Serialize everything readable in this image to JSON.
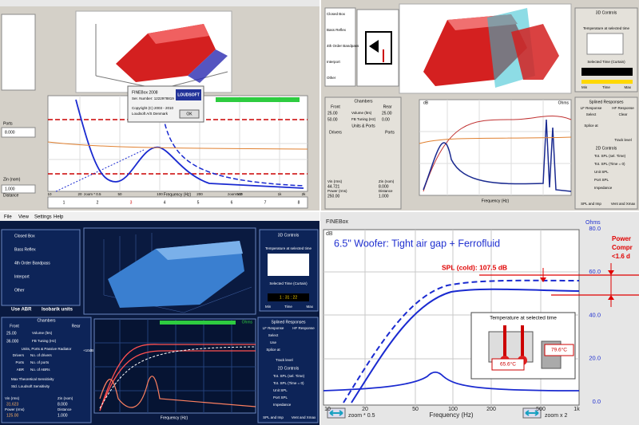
{
  "top_left": {
    "splash": {
      "product": "FINEBox 2008",
      "serial": "Ser. Number: 1222978819",
      "copyright": "Copyright (C) 2003 - 2010",
      "company": "Loudsoft A/S Denmark",
      "logo": "LOUDSOFT",
      "button": "OK"
    },
    "side_labels": [
      "Ports",
      "Zin (nom)",
      "Distance"
    ],
    "side_values": [
      "8.000",
      "1.000"
    ],
    "x_ticks": [
      "10",
      "20",
      "50",
      "100",
      "200",
      "500",
      "1k",
      "2k"
    ],
    "zoom_out": "zoom * 0.5",
    "x_label": "Frequency (Hz)",
    "zoom_in": "zoom x 2",
    "tabs": [
      "1",
      "2",
      "3",
      "4",
      "5",
      "6",
      "7",
      "8"
    ]
  },
  "top_right": {
    "box_types": [
      "Closed Box",
      "Bass Reflex",
      "4th Order Bandpass",
      "Interport",
      "Other"
    ],
    "chambers": {
      "title": "Chambers",
      "front": "Front",
      "rear": "Rear",
      "volume": "Volume (ltrs)",
      "tuning": "FB Tuning (Hz)",
      "front_volume": "25.00",
      "rear_volume": "25.00",
      "front_tuning": "50.00",
      "rear_tuning": "0.00"
    },
    "units_ports": "Units & Ports",
    "drivers": "Drivers",
    "ports": "Ports",
    "power": [
      [
        "Vin (rms)",
        "44.721"
      ],
      [
        "Power (rms)",
        "250.00"
      ]
    ],
    "impedance": [
      [
        "Zin (nom)",
        "8.000"
      ],
      [
        "Distance",
        "1.000"
      ]
    ],
    "controls_3d": "3D Controls",
    "temperature": "Temperature at selected time",
    "selected_time": "Selected Time (Curtain)",
    "time_min": "Min",
    "time": "Time",
    "time_max": "Max",
    "splined": "Splined Responses",
    "lf": "LF Response",
    "hf": "HF Response",
    "select": "Select",
    "clear": "Clear",
    "splice": "Splice at",
    "track": "Track level",
    "controls_2d": "2D Controls",
    "toggles": [
      "Tot. SPL (sel. Time)",
      "Tot. SPL (Time = 0)",
      "Unit SPL",
      "Port SPL",
      "Impedance"
    ],
    "buttons": [
      "SPL and Imp",
      "Vent and Xmax"
    ],
    "y_label": "dB",
    "y2_label": "Ohms",
    "x_label": "Frequency (Hz)"
  },
  "bottom_left": {
    "menu": [
      "File",
      "View",
      "Settings",
      "Help"
    ],
    "box_types": [
      "Closed Box",
      "Bass Reflex",
      "4th Order Bandpass",
      "Interport",
      "Other"
    ],
    "options": [
      "Use ABR",
      "Isobarik units"
    ],
    "chambers": {
      "title": "Chambers",
      "front": "Front",
      "rear": "Rear",
      "volume": "Volume (ltrs)",
      "tuning": "FB Tuning (Hz)",
      "front_volume": "25.00",
      "front_tuning": "36.000"
    },
    "units_title": "Units, Ports & Passive Radiator",
    "units": [
      [
        "Drivers",
        "No. of drivers"
      ],
      [
        "Ports",
        "No. of ports"
      ],
      [
        "ABR",
        "No. of ABRs"
      ]
    ],
    "sensitivity": [
      "Max Theoretical Sensitivity",
      "Std. Loudsoft Sensitivity"
    ],
    "power": [
      [
        "Vin (rms)",
        "31.623"
      ],
      [
        "Power (rms)",
        "125.00"
      ]
    ],
    "impedance": [
      [
        "Zin (nom)",
        "8.000"
      ],
      [
        "Distance",
        "1.000"
      ]
    ],
    "controls_3d": "3D Controls",
    "temperature": "Temperature at selected time",
    "selected_time": "Selected Time (Curtain)",
    "time_value": "1 : 31 : 22",
    "time_min": "Min",
    "time": "Time",
    "time_max": "Max",
    "splined": "Splined Responses",
    "lf": "LF Response",
    "hf": "HF Response",
    "select": "Select",
    "use": "Use",
    "splice": "Splice at",
    "track": "Track level",
    "controls_2d": "2D Controls",
    "toggles": [
      "Tot. SPL (sel. Time)",
      "Tot. SPL (Time = 0)",
      "Unit SPL",
      "Port SPL",
      "Impedance"
    ],
    "buttons": [
      "SPL and Imp",
      "Vent and Xmax"
    ],
    "y_label": "+10dB",
    "x_label": "Frequency (Hz)",
    "y2_label": "Ohms"
  },
  "bottom_right": {
    "brand": "FINEBox",
    "title": "6.5\" Woofer: Tight air gap + Ferrofluid",
    "y_label": "dB",
    "y2_label": "Ohms",
    "y2_ticks": [
      "80.0",
      "60.0",
      "40.0",
      "20.0",
      "0.0"
    ],
    "x_ticks": [
      "10",
      "20",
      "50",
      "100",
      "200",
      "500",
      "1k"
    ],
    "spl_note": "SPL (cold): 107.5 dB",
    "inset": {
      "title": "Temperature at selected time",
      "temp_left": "65.6°C",
      "temp_right": "79.6°C"
    },
    "zoom_out": "zoom * 0.5",
    "x_label": "Frequency (Hz)",
    "zoom_in": "zoom x 2",
    "side_note": [
      "Power",
      "Compr",
      "<1.6 d"
    ]
  }
}
